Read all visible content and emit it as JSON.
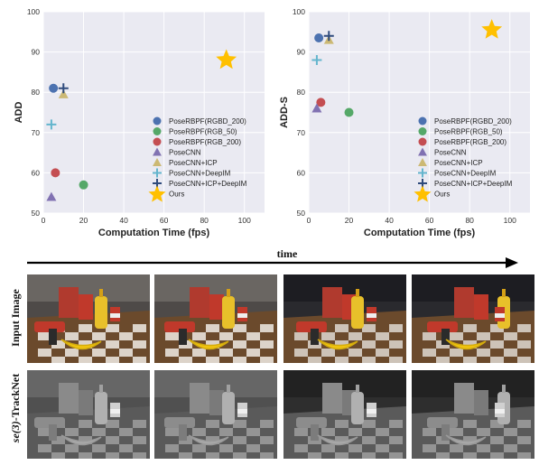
{
  "chart_data": [
    {
      "type": "scatter",
      "xlabel": "Computation Time (fps)",
      "ylabel": "ADD",
      "xlim": [
        0,
        110
      ],
      "ylim": [
        50,
        100
      ],
      "xticks": [
        "0",
        "20",
        "40",
        "60",
        "80",
        "100"
      ],
      "yticks": [
        "50",
        "60",
        "70",
        "80",
        "90",
        "100"
      ],
      "grid": true,
      "legend_position": "bottom-right",
      "series": [
        {
          "name": "PoseRBPF(RGBD_200)",
          "marker": "circle",
          "color": "#4c72b0",
          "points": [
            [
              5,
              81
            ]
          ]
        },
        {
          "name": "PoseRBPF(RGB_50)",
          "marker": "circle",
          "color": "#55a868",
          "points": [
            [
              20,
              57
            ]
          ]
        },
        {
          "name": "PoseRBPF(RGB_200)",
          "marker": "circle",
          "color": "#c44e52",
          "points": [
            [
              6,
              60
            ]
          ]
        },
        {
          "name": "PoseCNN",
          "marker": "triangle",
          "color": "#8172b2",
          "points": [
            [
              4,
              54
            ]
          ]
        },
        {
          "name": "PoseCNN+ICP",
          "marker": "triangle",
          "color": "#ccb974",
          "points": [
            [
              10,
              79.5
            ]
          ]
        },
        {
          "name": "PoseCNN+DeepIM",
          "marker": "plus",
          "color": "#64b5cd",
          "points": [
            [
              4,
              72
            ]
          ]
        },
        {
          "name": "PoseCNN+ICP+DeepIM",
          "marker": "plus",
          "color": "#2f4b7c",
          "points": [
            [
              10,
              81
            ]
          ]
        },
        {
          "name": "Ours",
          "marker": "star",
          "color": "#ffc000",
          "points": [
            [
              91,
              88
            ]
          ]
        }
      ]
    },
    {
      "type": "scatter",
      "xlabel": "Computation Time (fps)",
      "ylabel": "ADD-S",
      "xlim": [
        0,
        110
      ],
      "ylim": [
        50,
        100
      ],
      "xticks": [
        "0",
        "20",
        "40",
        "60",
        "80",
        "100"
      ],
      "yticks": [
        "50",
        "60",
        "70",
        "80",
        "90",
        "100"
      ],
      "grid": true,
      "legend_position": "bottom-right",
      "series": [
        {
          "name": "PoseRBPF(RGBD_200)",
          "marker": "circle",
          "color": "#4c72b0",
          "points": [
            [
              5,
              93.5
            ]
          ]
        },
        {
          "name": "PoseRBPF(RGB_50)",
          "marker": "circle",
          "color": "#55a868",
          "points": [
            [
              20,
              75
            ]
          ]
        },
        {
          "name": "PoseRBPF(RGB_200)",
          "marker": "circle",
          "color": "#c44e52",
          "points": [
            [
              6,
              77.5
            ]
          ]
        },
        {
          "name": "PoseCNN",
          "marker": "triangle",
          "color": "#8172b2",
          "points": [
            [
              4,
              76
            ]
          ]
        },
        {
          "name": "PoseCNN+ICP",
          "marker": "triangle",
          "color": "#ccb974",
          "points": [
            [
              10,
              93
            ]
          ]
        },
        {
          "name": "PoseCNN+DeepIM",
          "marker": "plus",
          "color": "#64b5cd",
          "points": [
            [
              4,
              88
            ]
          ]
        },
        {
          "name": "PoseCNN+ICP+DeepIM",
          "marker": "plus",
          "color": "#2f4b7c",
          "points": [
            [
              10,
              94
            ]
          ]
        },
        {
          "name": "Ours",
          "marker": "star",
          "color": "#ffc000",
          "points": [
            [
              91,
              95.5
            ]
          ]
        }
      ]
    }
  ],
  "figure": {
    "time_label": "time",
    "row_labels": [
      "Input Image",
      "se(3)-TrackNet"
    ],
    "row_label_prefix": "se(3)",
    "row_label_suffix": "-TrackNet"
  },
  "colors": {
    "grid_bg": "#eaeaf2",
    "grid_line": "#ffffff"
  }
}
